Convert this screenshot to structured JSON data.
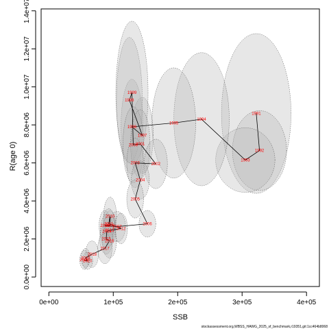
{
  "chart_data": {
    "type": "scatter",
    "title": "",
    "xlabel": "SSB",
    "ylabel": "R(age 0)",
    "xlim": [
      -12000,
      420000
    ],
    "ylim": [
      -500000,
      14100000
    ],
    "x_ticks": [
      0,
      100000,
      200000,
      300000,
      400000
    ],
    "x_tick_labels": [
      "0e+00",
      "1e+05",
      "2e+05",
      "3e+05",
      "4e+05"
    ],
    "y_ticks": [
      0,
      2000000,
      4000000,
      6000000,
      8000000,
      10000000,
      12000000,
      14000000
    ],
    "y_tick_labels": [
      "0.0e+00",
      "2.0e+06",
      "4.0e+06",
      "6.0e+06",
      "8.0e+06",
      "1.0e+07",
      "1.2e+07",
      "1.4e+07"
    ],
    "grid": false,
    "legend": "none",
    "colors": {
      "ellipse_fill": "#b4b4b4",
      "ellipse_stroke": "#555555",
      "trajectory": "#000000",
      "year_label": "#ff0000"
    },
    "points": [
      {
        "year": "1991",
        "ssb": 322000,
        "r": 8600000,
        "sx": 54000,
        "sy": 4200000
      },
      {
        "year": "1992",
        "ssb": 327000,
        "r": 6650000,
        "sx": 42000,
        "sy": 2100000
      },
      {
        "year": "1993",
        "ssb": 305000,
        "r": 6150000,
        "sx": 46000,
        "sy": 1700000
      },
      {
        "year": "1994",
        "ssb": 237000,
        "r": 8300000,
        "sx": 43000,
        "sy": 3500000
      },
      {
        "year": "1995",
        "ssb": 194000,
        "r": 8100000,
        "sx": 34000,
        "sy": 2900000
      },
      {
        "year": "1996",
        "ssb": 129000,
        "r": 7900000,
        "sx": 17000,
        "sy": 2500000
      },
      {
        "year": "1997",
        "ssb": 145000,
        "r": 7450000,
        "sx": 17000,
        "sy": 2000000
      },
      {
        "year": "1998",
        "ssb": 125000,
        "r": 9300000,
        "sx": 20000,
        "sy": 3300000
      },
      {
        "year": "1999",
        "ssb": 129000,
        "r": 9700000,
        "sx": 25000,
        "sy": 3750000
      },
      {
        "year": "2000",
        "ssb": 131000,
        "r": 6950000,
        "sx": 16000,
        "sy": 2000000
      },
      {
        "year": "2001",
        "ssb": 142000,
        "r": 7000000,
        "sx": 15000,
        "sy": 1800000
      },
      {
        "year": "2002",
        "ssb": 166000,
        "r": 5950000,
        "sx": 18000,
        "sy": 1300000
      },
      {
        "year": "2003",
        "ssb": 134000,
        "r": 6000000,
        "sx": 13000,
        "sy": 1300000
      },
      {
        "year": "2004",
        "ssb": 142000,
        "r": 5100000,
        "sx": 14000,
        "sy": 1000000
      },
      {
        "year": "2005",
        "ssb": 134000,
        "r": 4100000,
        "sx": 13000,
        "sy": 1000000
      },
      {
        "year": "2006",
        "ssb": 153000,
        "r": 2800000,
        "sx": 13000,
        "sy": 700000
      },
      {
        "year": "2007",
        "ssb": 106000,
        "r": 2650000,
        "sx": 13000,
        "sy": 800000
      },
      {
        "year": "2008",
        "ssb": 87000,
        "r": 2700000,
        "sx": 9000,
        "sy": 800000
      },
      {
        "year": "2009",
        "ssb": 95000,
        "r": 2700000,
        "sx": 9000,
        "sy": 800000
      },
      {
        "year": "2010",
        "ssb": 95000,
        "r": 3200000,
        "sx": 10000,
        "sy": 1000000
      },
      {
        "year": "2011",
        "ssb": 93000,
        "r": 2800000,
        "sx": 9000,
        "sy": 800000
      },
      {
        "year": "2012",
        "ssb": 112000,
        "r": 2550000,
        "sx": 10000,
        "sy": 800000
      },
      {
        "year": "2013",
        "ssb": 94000,
        "r": 2450000,
        "sx": 10000,
        "sy": 800000
      },
      {
        "year": "2014",
        "ssb": 90000,
        "r": 2400000,
        "sx": 10000,
        "sy": 900000
      },
      {
        "year": "2015",
        "ssb": 89000,
        "r": 2000000,
        "sx": 10000,
        "sy": 800000
      },
      {
        "year": "2016",
        "ssb": 94000,
        "r": 1900000,
        "sx": 11000,
        "sy": 900000
      },
      {
        "year": "2017",
        "ssb": 87000,
        "r": 1500000,
        "sx": 11000,
        "sy": 800000
      },
      {
        "year": "2018",
        "ssb": 67000,
        "r": 1200000,
        "sx": 10000,
        "sy": 700000
      },
      {
        "year": "2019",
        "ssb": 57000,
        "r": 1000000,
        "sx": 7000,
        "sy": 500000
      },
      {
        "year": "2020",
        "ssb": 60000,
        "r": 850000,
        "sx": 8000,
        "sy": 450000
      },
      {
        "year": "2021",
        "ssb": 55000,
        "r": 900000,
        "sx": 7000,
        "sy": 500000
      }
    ]
  },
  "footer": "stockassessment.org,WBSS_HAWG_2025_sf_benchmark,r19351,git:1cc464b8068"
}
